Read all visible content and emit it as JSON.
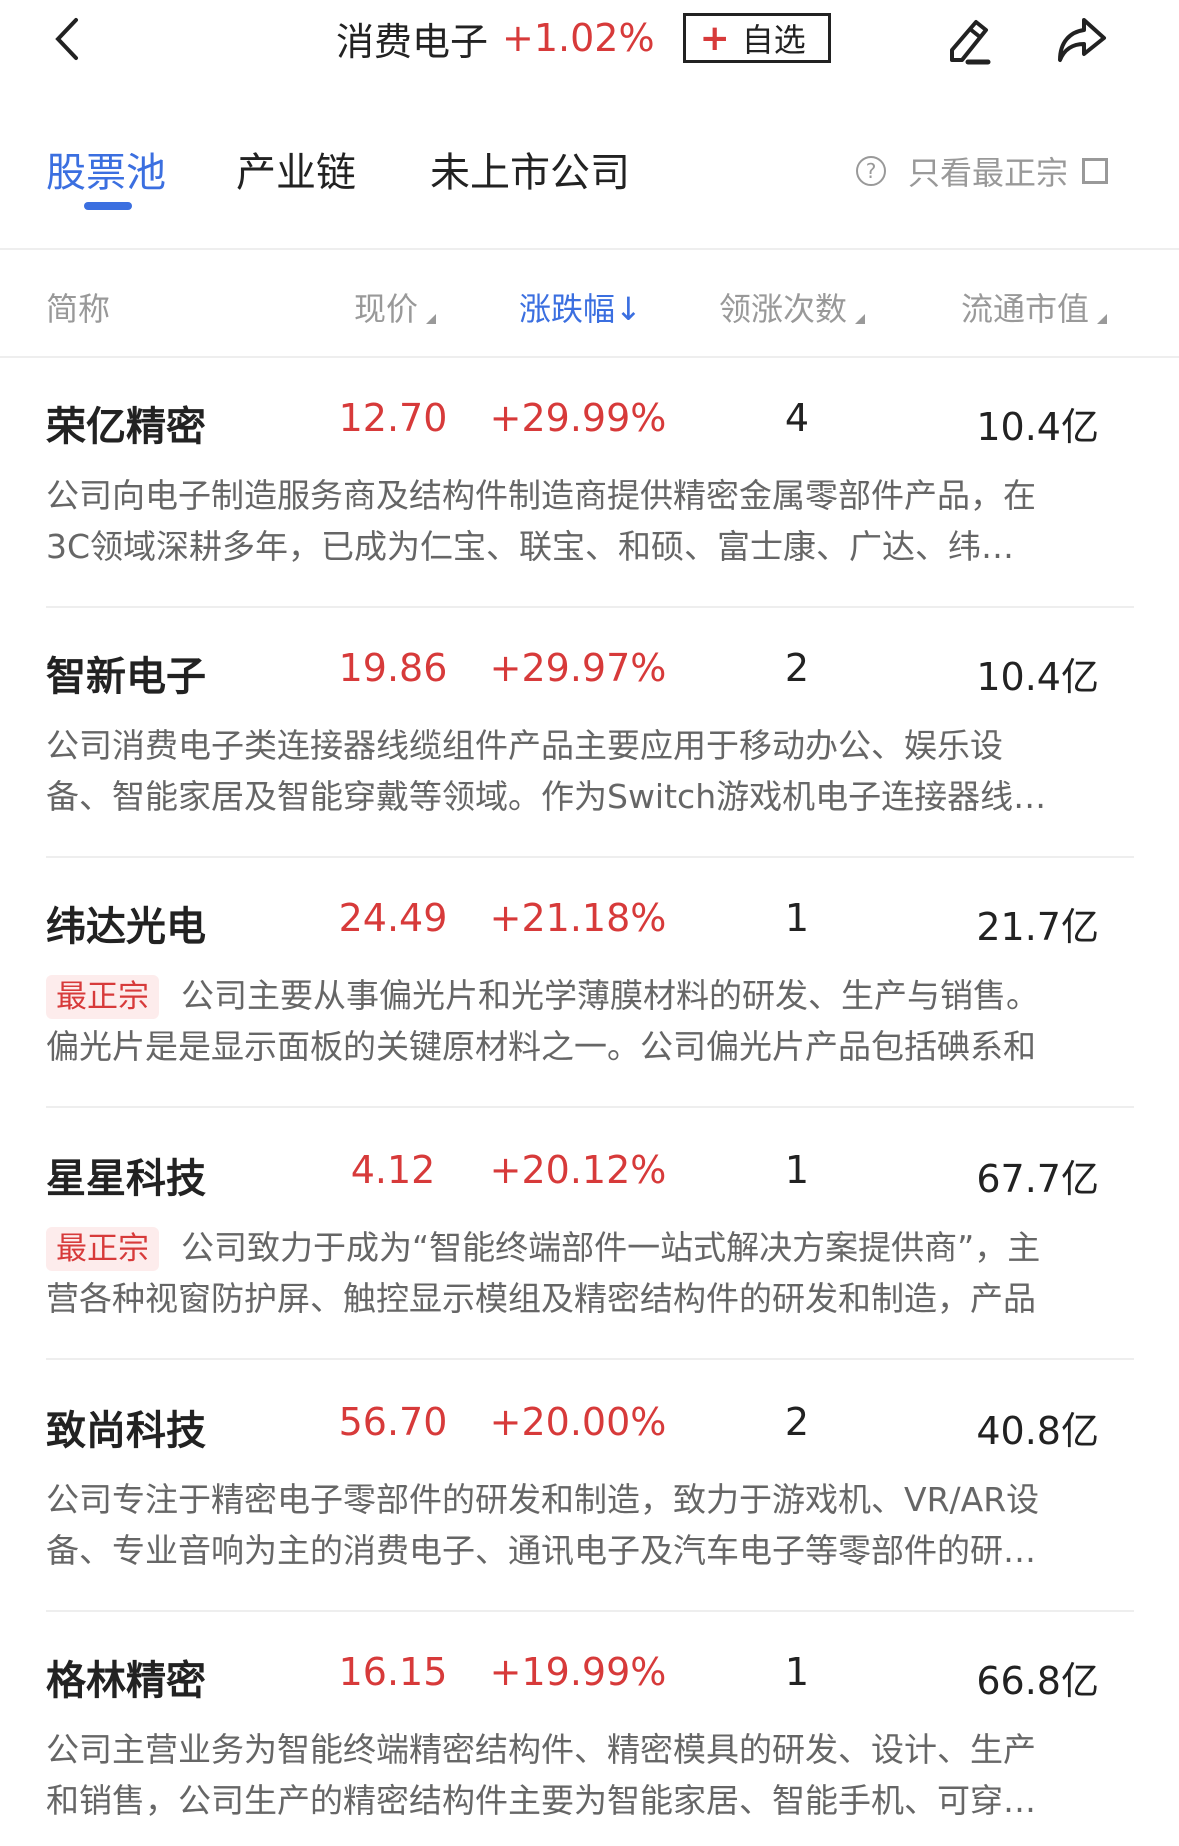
{
  "header": {
    "back_icon": "chevron-left-icon",
    "title": "消费电子",
    "change": "+1.02%",
    "watch_plus": "+",
    "watch_label": "自选",
    "edit_icon": "pencil-icon",
    "share_icon": "share-icon"
  },
  "tabs": [
    {
      "label": "股票池",
      "active": true
    },
    {
      "label": "产业链",
      "active": false
    },
    {
      "label": "未上市公司",
      "active": false
    }
  ],
  "filter": {
    "help": "?",
    "label": "只看最正宗",
    "checked": false
  },
  "columns": [
    {
      "label": "简称"
    },
    {
      "label": "现价",
      "sort": "none"
    },
    {
      "label": "涨跌幅↓",
      "sort": "desc",
      "active": true
    },
    {
      "label": "领涨次数",
      "sort": "none"
    },
    {
      "label": "流通市值",
      "sort": "none"
    }
  ],
  "colors": {
    "accent": "#3b6fe0",
    "up": "#d73a3a",
    "badge_bg": "#fdecec"
  },
  "stocks": [
    {
      "name": "荣亿精密",
      "price": "12.70",
      "change": "+29.99%",
      "lead_count": "4",
      "float_cap": "10.4亿",
      "badge": "",
      "desc": [
        "公司向电子制造服务商及结构件制造商提供精密金属零部件产品，在",
        "3C领域深耕多年，已成为仁宝、联宝、和硕、富士康、广达、纬…"
      ]
    },
    {
      "name": "智新电子",
      "price": "19.86",
      "change": "+29.97%",
      "lead_count": "2",
      "float_cap": "10.4亿",
      "badge": "",
      "desc": [
        "公司消费电子类连接器线缆组件产品主要应用于移动办公、娱乐设",
        "备、智能家居及智能穿戴等领域。作为Switch游戏机电子连接器线…"
      ]
    },
    {
      "name": "纬达光电",
      "price": "24.49",
      "change": "+21.18%",
      "lead_count": "1",
      "float_cap": "21.7亿",
      "badge": "最正宗",
      "desc": [
        "公司主要从事偏光片和光学薄膜材料的研发、生产与销售。",
        "偏光片是是显示面板的关键原材料之一。公司偏光片产品包括碘系和"
      ]
    },
    {
      "name": "星星科技",
      "price": "4.12",
      "change": "+20.12%",
      "lead_count": "1",
      "float_cap": "67.7亿",
      "badge": "最正宗",
      "desc": [
        "公司致力于成为“智能终端部件一站式解决方案提供商”，主",
        "营各种视窗防护屏、触控显示模组及精密结构件的研发和制造，产品"
      ]
    },
    {
      "name": "致尚科技",
      "price": "56.70",
      "change": "+20.00%",
      "lead_count": "2",
      "float_cap": "40.8亿",
      "badge": "",
      "desc": [
        "公司专注于精密电子零部件的研发和制造，致力于游戏机、VR/AR设",
        "备、专业音响为主的消费电子、通讯电子及汽车电子等零部件的研…"
      ]
    },
    {
      "name": "格林精密",
      "price": "16.15",
      "change": "+19.99%",
      "lead_count": "1",
      "float_cap": "66.8亿",
      "badge": "",
      "desc": [
        "公司主营业务为智能终端精密结构件、精密模具的研发、设计、生产",
        "和销售，公司生产的精密结构件主要为智能家居、智能手机、可穿…"
      ]
    }
  ]
}
